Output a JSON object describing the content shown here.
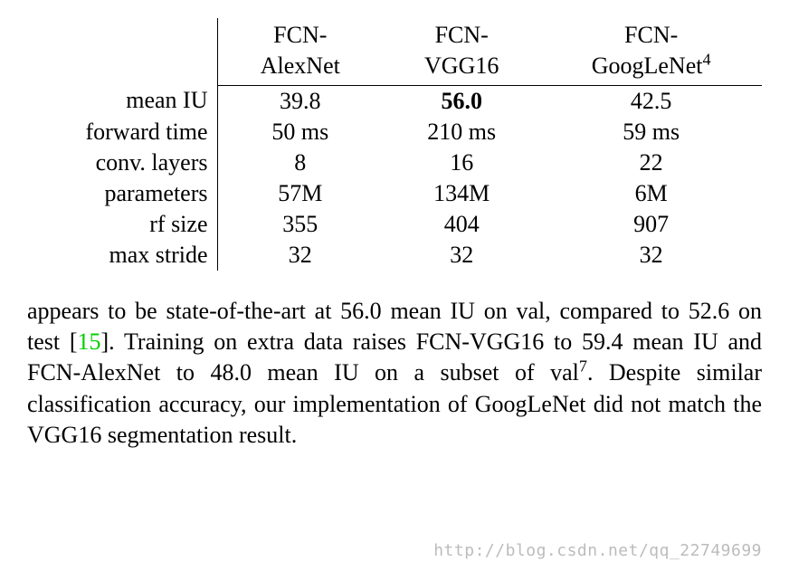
{
  "table": {
    "columns": [
      {
        "line1": "FCN-",
        "line2": "AlexNet",
        "sup": ""
      },
      {
        "line1": "FCN-",
        "line2": "VGG16",
        "sup": ""
      },
      {
        "line1": "FCN-",
        "line2": "GoogLeNet",
        "sup": "4"
      }
    ],
    "rows": [
      {
        "label": "mean IU",
        "cells": [
          {
            "value": "39.8",
            "bold": false
          },
          {
            "value": "56.0",
            "bold": true
          },
          {
            "value": "42.5",
            "bold": false
          }
        ]
      },
      {
        "label": "forward time",
        "cells": [
          {
            "value": "50 ms",
            "bold": false
          },
          {
            "value": "210 ms",
            "bold": false
          },
          {
            "value": "59 ms",
            "bold": false
          }
        ]
      },
      {
        "label": "conv. layers",
        "cells": [
          {
            "value": "8",
            "bold": false
          },
          {
            "value": "16",
            "bold": false
          },
          {
            "value": "22",
            "bold": false
          }
        ]
      },
      {
        "label": "parameters",
        "cells": [
          {
            "value": "57M",
            "bold": false
          },
          {
            "value": "134M",
            "bold": false
          },
          {
            "value": "6M",
            "bold": false
          }
        ]
      },
      {
        "label": "rf size",
        "cells": [
          {
            "value": "355",
            "bold": false
          },
          {
            "value": "404",
            "bold": false
          },
          {
            "value": "907",
            "bold": false
          }
        ]
      },
      {
        "label": "max stride",
        "cells": [
          {
            "value": "32",
            "bold": false
          },
          {
            "value": "32",
            "bold": false
          },
          {
            "value": "32",
            "bold": false
          }
        ]
      }
    ],
    "font_size": 26,
    "border_color": "#000000",
    "background_color": "#ffffff"
  },
  "paragraph": {
    "text_before_ref": "appears to be state-of-the-art at 56.0 mean IU on val, compared to 52.6 on test [",
    "ref_number": "15",
    "ref_color": "#00d000",
    "text_after_ref": "].  Training on extra data raises FCN-VGG16 to 59.4 mean IU and FCN-AlexNet to 48.0 mean IU on a subset of val",
    "sup_after": "7",
    "text_end": ". Despite similar classification accuracy, our implementation of GoogLeNet did not match the VGG16 segmentation result.",
    "font_size": 26
  },
  "watermark": {
    "text": "http://blog.csdn.net/qq_22749699",
    "color": "rgba(160, 160, 160, 0.7)"
  }
}
